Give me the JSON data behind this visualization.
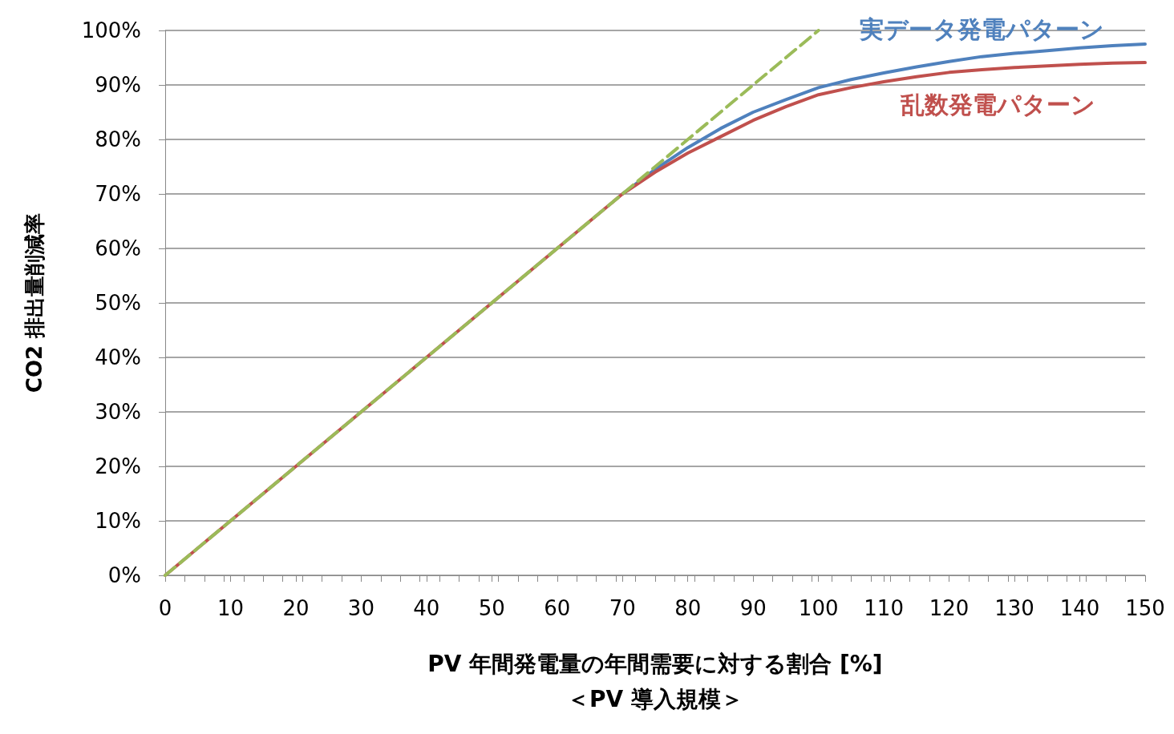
{
  "chart_data": {
    "type": "line",
    "xlabel": "PV 年間発電量の年間需要に対する割合 [%]\n＜PV 導入規模＞",
    "ylabel": "CO2 排出量削減率",
    "xlim": [
      0,
      150
    ],
    "xticks": [
      0,
      10,
      20,
      30,
      40,
      50,
      60,
      70,
      80,
      90,
      100,
      110,
      120,
      130,
      140,
      150
    ],
    "ylim": [
      0,
      100
    ],
    "yticks": [
      {
        "value": 0,
        "label": "0%"
      },
      {
        "value": 10,
        "label": "10%"
      },
      {
        "value": 20,
        "label": "20%"
      },
      {
        "value": 30,
        "label": "30%"
      },
      {
        "value": 40,
        "label": "40%"
      },
      {
        "value": 50,
        "label": "50%"
      },
      {
        "value": 60,
        "label": "60%"
      },
      {
        "value": 70,
        "label": "70%"
      },
      {
        "value": 80,
        "label": "80%"
      },
      {
        "value": 90,
        "label": "90%"
      },
      {
        "value": 100,
        "label": "100%"
      }
    ],
    "grid": "y",
    "legend": false,
    "marker": "none",
    "line_style": "solid",
    "series": [
      {
        "name": "実データ発電パターン",
        "color": "#4f81bd",
        "x": [
          70,
          75,
          80,
          85,
          90,
          95,
          100,
          105,
          110,
          115,
          120,
          125,
          130,
          135,
          140,
          145,
          150
        ],
        "values": [
          70,
          74.5,
          78.5,
          82,
          85,
          87.3,
          89.5,
          91,
          92.2,
          93.3,
          94.3,
          95.2,
          95.8,
          96.3,
          96.8,
          97.2,
          97.5
        ]
      },
      {
        "name": "乱数発電パターン",
        "color": "#c0504d",
        "x": [
          0,
          10,
          20,
          30,
          40,
          50,
          60,
          70,
          75,
          80,
          85,
          90,
          95,
          100,
          105,
          110,
          115,
          120,
          125,
          130,
          135,
          140,
          145,
          150
        ],
        "values": [
          0,
          10,
          20,
          30,
          40,
          50,
          60,
          70,
          74,
          77.5,
          80.5,
          83.5,
          86,
          88.2,
          89.5,
          90.6,
          91.5,
          92.3,
          92.8,
          93.2,
          93.5,
          93.8,
          94,
          94.1
        ]
      },
      {
        "color": "#9bbb59",
        "line_style": "dashed",
        "x": [
          0,
          100
        ],
        "values": [
          0,
          100
        ]
      }
    ]
  }
}
